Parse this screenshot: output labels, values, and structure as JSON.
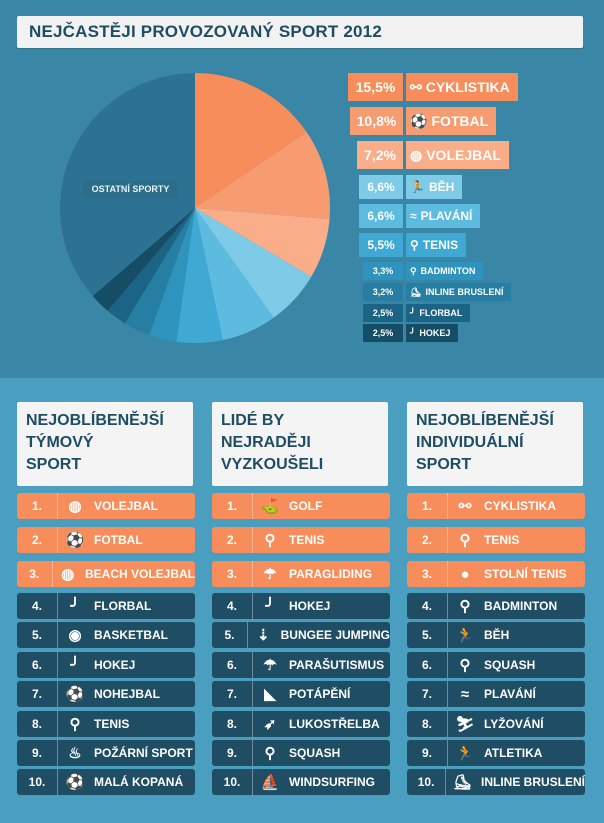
{
  "title": "NEJČASTĚJI PROVOZOVANÝ SPORT 2012",
  "chart_data": {
    "type": "pie",
    "slices": [
      {
        "label": "CYKLISTIKA",
        "value": 15.5,
        "pct": "15,5%",
        "color": "#f78d5a",
        "icon": "bike-icon"
      },
      {
        "label": "FOTBAL",
        "value": 10.8,
        "pct": "10,8%",
        "color": "#f79c70",
        "icon": "football-icon"
      },
      {
        "label": "VOLEJBAL",
        "value": 7.2,
        "pct": "7,2%",
        "color": "#f9ad88",
        "icon": "volleyball-icon"
      },
      {
        "label": "BĚH",
        "value": 6.6,
        "pct": "6,6%",
        "color": "#7dcbe6",
        "icon": "running-icon"
      },
      {
        "label": "PLAVÁNÍ",
        "value": 6.6,
        "pct": "6,6%",
        "color": "#5cbbdf",
        "icon": "swimming-icon"
      },
      {
        "label": "TENIS",
        "value": 5.5,
        "pct": "5,5%",
        "color": "#3fa9d3",
        "icon": "tennis-icon"
      },
      {
        "label": "BADMINTON",
        "value": 3.3,
        "pct": "3,3%",
        "color": "#2f94bd",
        "icon": "badminton-icon"
      },
      {
        "label": "INLINE BRUSLENÍ",
        "value": 3.2,
        "pct": "3,2%",
        "color": "#267ea3",
        "icon": "skate-icon"
      },
      {
        "label": "FLORBAL",
        "value": 2.5,
        "pct": "2,5%",
        "color": "#1c6485",
        "icon": "floorball-icon"
      },
      {
        "label": "HOKEJ",
        "value": 2.5,
        "pct": "2,5%",
        "color": "#164d66",
        "icon": "hockey-icon"
      },
      {
        "label": "OSTATNÍ SPORTY",
        "value": 36.3,
        "color": "#2d7193"
      }
    ]
  },
  "columns": [
    {
      "heading": [
        "NEJOBLÍBENĚJŠÍ",
        "TÝMOVÝ",
        "SPORT"
      ],
      "items": [
        {
          "rank": "1.",
          "name": "VOLEJBAL",
          "icon": "volleyball-icon",
          "glyph": "◍"
        },
        {
          "rank": "2.",
          "name": "FOTBAL",
          "icon": "football-icon",
          "glyph": "⚽"
        },
        {
          "rank": "3.",
          "name": "BEACH VOLEJBAL",
          "icon": "volleyball-icon",
          "glyph": "◍"
        },
        {
          "rank": "4.",
          "name": "FLORBAL",
          "icon": "floorball-stick-icon",
          "glyph": "╯"
        },
        {
          "rank": "5.",
          "name": "BASKETBAL",
          "icon": "basketball-icon",
          "glyph": "◉"
        },
        {
          "rank": "6.",
          "name": "HOKEJ",
          "icon": "hockey-stick-icon",
          "glyph": "╯"
        },
        {
          "rank": "7.",
          "name": "NOHEJBAL",
          "icon": "football-icon",
          "glyph": "⚽"
        },
        {
          "rank": "8.",
          "name": "TENIS",
          "icon": "tennis-racket-icon",
          "glyph": "⚲"
        },
        {
          "rank": "9.",
          "name": "POŽÁRNÍ SPORT",
          "icon": "fire-icon",
          "glyph": "♨"
        },
        {
          "rank": "10.",
          "name": "MALÁ KOPANÁ",
          "icon": "football-icon",
          "glyph": "⚽"
        }
      ]
    },
    {
      "heading": [
        "LIDÉ BY",
        "NEJRADĚJI",
        "VYZKOUŠELI"
      ],
      "items": [
        {
          "rank": "1.",
          "name": "GOLF",
          "icon": "golf-icon",
          "glyph": "⛳"
        },
        {
          "rank": "2.",
          "name": "TENIS",
          "icon": "tennis-racket-icon",
          "glyph": "⚲"
        },
        {
          "rank": "3.",
          "name": "PARAGLIDING",
          "icon": "paraglider-icon",
          "glyph": "☂"
        },
        {
          "rank": "4.",
          "name": "HOKEJ",
          "icon": "hockey-stick-icon",
          "glyph": "╯"
        },
        {
          "rank": "5.",
          "name": "BUNGEE JUMPING",
          "icon": "bungee-icon",
          "glyph": "⇣"
        },
        {
          "rank": "6.",
          "name": "PARAŠUTISMUS",
          "icon": "parachute-icon",
          "glyph": "☂"
        },
        {
          "rank": "7.",
          "name": "POTÁPĚNÍ",
          "icon": "fin-icon",
          "glyph": "◣"
        },
        {
          "rank": "8.",
          "name": "LUKOSTŘELBA",
          "icon": "archery-icon",
          "glyph": "➶"
        },
        {
          "rank": "9.",
          "name": "SQUASH",
          "icon": "squash-racket-icon",
          "glyph": "⚲"
        },
        {
          "rank": "10.",
          "name": "WINDSURFING",
          "icon": "windsurf-icon",
          "glyph": "⛵"
        }
      ]
    },
    {
      "heading": [
        "NEJOBLÍBENĚJŠÍ",
        "INDIVIDUÁLNÍ",
        "SPORT"
      ],
      "items": [
        {
          "rank": "1.",
          "name": "CYKLISTIKA",
          "icon": "bike-icon",
          "glyph": "⚯"
        },
        {
          "rank": "2.",
          "name": "TENIS",
          "icon": "tennis-racket-icon",
          "glyph": "⚲"
        },
        {
          "rank": "3.",
          "name": "STOLNÍ TENIS",
          "icon": "table-tennis-icon",
          "glyph": "●"
        },
        {
          "rank": "4.",
          "name": "BADMINTON",
          "icon": "badminton-icon",
          "glyph": "⚲"
        },
        {
          "rank": "5.",
          "name": "BĚH",
          "icon": "running-icon",
          "glyph": "🏃"
        },
        {
          "rank": "6.",
          "name": "SQUASH",
          "icon": "squash-racket-icon",
          "glyph": "⚲"
        },
        {
          "rank": "7.",
          "name": "PLAVÁNÍ",
          "icon": "swimming-icon",
          "glyph": "≈"
        },
        {
          "rank": "8.",
          "name": "LYŽOVÁNÍ",
          "icon": "skiing-icon",
          "glyph": "⛷"
        },
        {
          "rank": "9.",
          "name": "ATLETIKA",
          "icon": "athletics-icon",
          "glyph": "🏃"
        },
        {
          "rank": "10.",
          "name": "INLINE BRUSLENÍ",
          "icon": "skate-icon",
          "glyph": "⛸"
        }
      ]
    }
  ]
}
